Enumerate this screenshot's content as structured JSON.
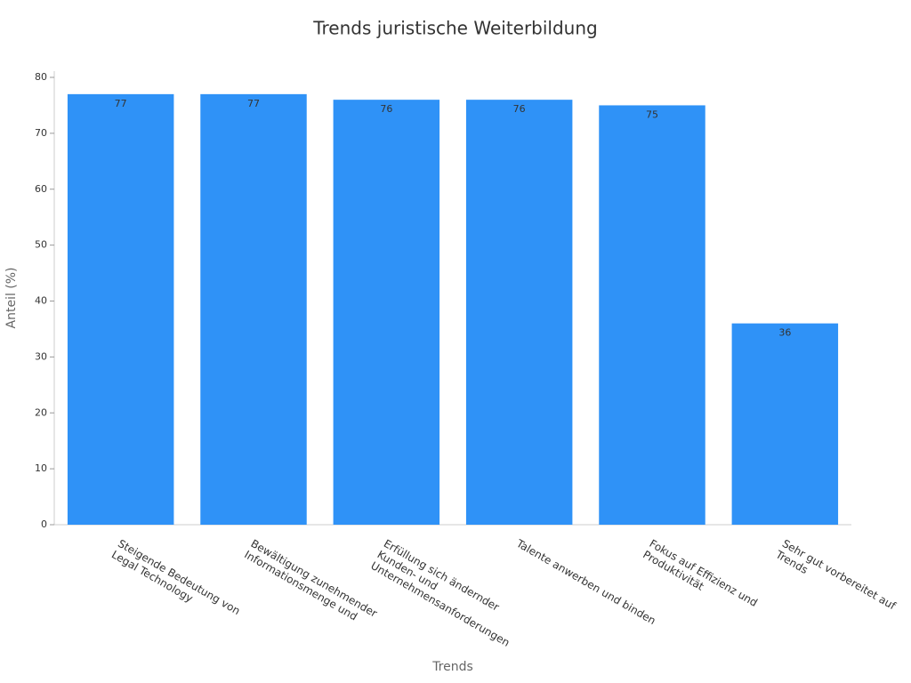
{
  "chart_data": {
    "type": "bar",
    "title": "Trends juristische Weiterbildung",
    "x_label": "Trends",
    "y_label": "Anteil (%)",
    "categories": [
      "Steigende Bedeutung von Legal Technology",
      "Bewältigung zunehmender Informationsmenge und",
      "Erfüllung sich ändernder Kunden- und Unternehmensanforderungen",
      "Talente anwerben und binden",
      "Fokus auf Effizienz und Produktivität",
      "Sehr gut vorbereitet auf Trends"
    ],
    "values": [
      77,
      77,
      76,
      76,
      75,
      36
    ],
    "color": "#2f92f7",
    "ylim": [
      0,
      80
    ],
    "yticks": [
      0,
      10,
      20,
      30,
      40,
      50,
      60,
      70,
      80
    ],
    "grid": false
  }
}
